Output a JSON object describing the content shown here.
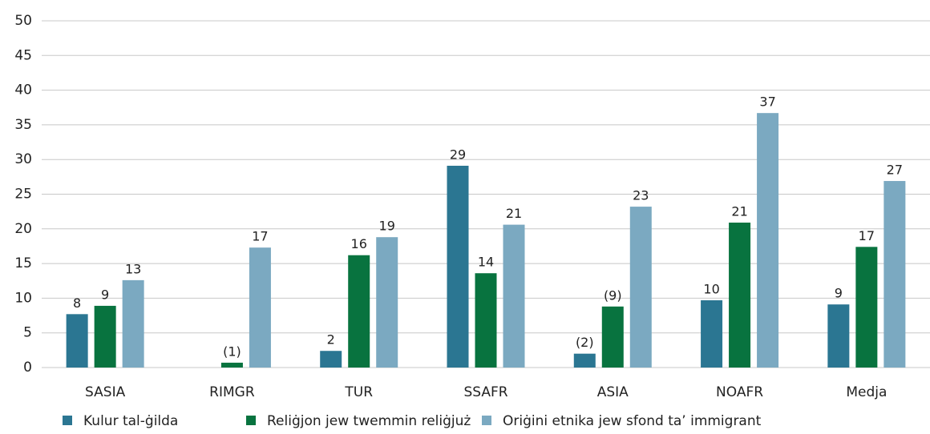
{
  "chart_data": {
    "type": "bar",
    "categories": [
      "SASIA",
      "RIMGR",
      "TUR",
      "SSAFR",
      "ASIA",
      "NOAFR",
      "Medja"
    ],
    "series": [
      {
        "name": "Kulur tal-ġilda",
        "color": "#2b7692",
        "values": [
          7.7,
          null,
          2.4,
          29.1,
          2.0,
          9.7,
          9.1
        ],
        "value_labels": [
          "8",
          null,
          "2",
          "29",
          "(2)",
          "10",
          "9"
        ]
      },
      {
        "name": "Reliġjon jew twemmin reliġjuż",
        "color": "#08733f",
        "values": [
          8.9,
          0.7,
          16.2,
          13.6,
          8.8,
          20.9,
          17.4
        ],
        "value_labels": [
          "9",
          "(1)",
          "16",
          "14",
          "(9)",
          "21",
          "17"
        ]
      },
      {
        "name": "Oriġini etnika jew sfond ta’ immigrant",
        "color": "#7ba9c1",
        "values": [
          12.6,
          17.3,
          18.8,
          20.6,
          23.2,
          36.7,
          26.9
        ],
        "value_labels": [
          "13",
          "17",
          "19",
          "21",
          "23",
          "37",
          "27"
        ]
      }
    ],
    "ylim": [
      0,
      50
    ],
    "yticks": [
      0,
      5,
      10,
      15,
      20,
      25,
      30,
      35,
      40,
      45,
      50
    ],
    "grid": true,
    "legend": "bottom"
  }
}
